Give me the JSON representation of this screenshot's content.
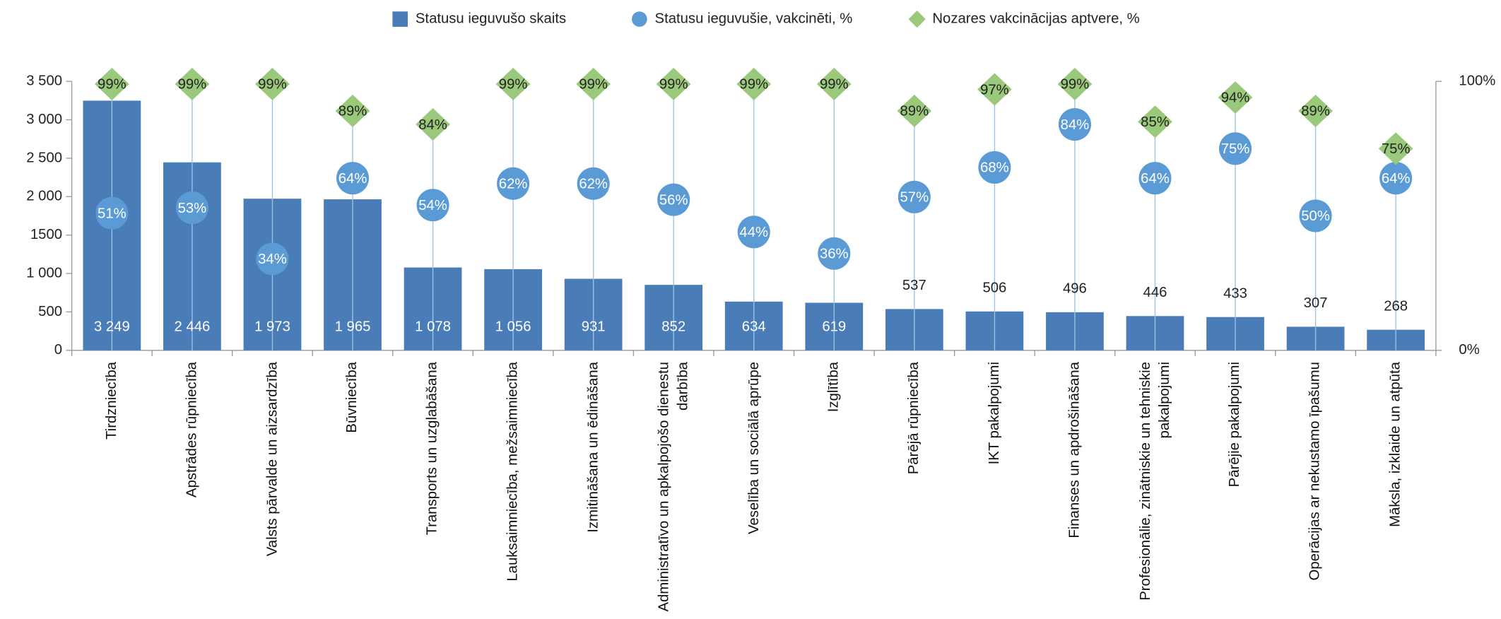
{
  "chart_data": {
    "type": "bar",
    "categories": [
      "Tirdzniecība",
      "Apstrādes rūpniecība",
      "Valsts pārvalde un aizsardzība",
      "Būvniecība",
      "Transports un uzglabāšana",
      "Lauksaimniecība, mežsaimniecība",
      "Izmitināšana un ēdināšana",
      "Administratīvo un apkalpojošo dienestu darbība",
      "Veselība un sociālā aprūpe",
      "Izglītība",
      "Pārējā rūpniecība",
      "IKT pakalpojumi",
      "Finanses un apdrošināšana",
      "Profesionālie, zinātniskie un tehniskie pakalpojumi",
      "Pārējie pakalpojumi",
      "Operācijas ar nekustamo īpašumu",
      "Māksla, izklaide un atpūta"
    ],
    "series": [
      {
        "name": "Statusu ieguvušo skaits",
        "type": "bar",
        "color": "#4a7db8",
        "values": [
          3249,
          2446,
          1973,
          1965,
          1078,
          1056,
          931,
          852,
          634,
          619,
          537,
          506,
          496,
          446,
          433,
          307,
          268
        ],
        "value_labels": [
          "3 249",
          "2 446",
          "1 973",
          "1 965",
          "1 078",
          "1 056",
          "931",
          "852",
          "634",
          "619",
          "537",
          "506",
          "496",
          "446",
          "433",
          "307",
          "268"
        ]
      },
      {
        "name": "Statusu ieguvušie, vakcinēti, %",
        "type": "circle",
        "axis": "y2",
        "color": "#5b9bd5",
        "values": [
          51,
          53,
          34,
          64,
          54,
          62,
          62,
          56,
          44,
          36,
          57,
          68,
          84,
          64,
          75,
          50,
          64
        ],
        "value_labels": [
          "51%",
          "53%",
          "34%",
          "64%",
          "54%",
          "62%",
          "62%",
          "56%",
          "44%",
          "36%",
          "57%",
          "68%",
          "84%",
          "64%",
          "75%",
          "50%",
          "64%"
        ]
      },
      {
        "name": "Nozares vakcinācijas aptvere, %",
        "type": "diamond",
        "axis": "y2",
        "color": "#9bc97b",
        "values": [
          99,
          99,
          99,
          89,
          84,
          99,
          99,
          99,
          99,
          99,
          89,
          97,
          99,
          85,
          94,
          89,
          75
        ],
        "value_labels": [
          "99%",
          "99%",
          "99%",
          "89%",
          "84%",
          "99%",
          "99%",
          "99%",
          "99%",
          "99%",
          "89%",
          "97%",
          "99%",
          "85%",
          "94%",
          "89%",
          "75%"
        ]
      }
    ],
    "ylim": [
      0,
      3500
    ],
    "yticks": [
      0,
      500,
      {
        "value": 1000,
        "label": "1 000"
      },
      1500,
      {
        "value": 2000,
        "label": "2 000"
      },
      {
        "value": 2500,
        "label": "2 500"
      },
      {
        "value": 3000,
        "label": "3 000"
      },
      {
        "value": 3500,
        "label": "3 500"
      }
    ],
    "y2lim": [
      0,
      100
    ],
    "y2ticks": [
      {
        "value": 0,
        "label": "0%"
      },
      {
        "value": 100,
        "label": "100%"
      }
    ],
    "legend": "top"
  }
}
